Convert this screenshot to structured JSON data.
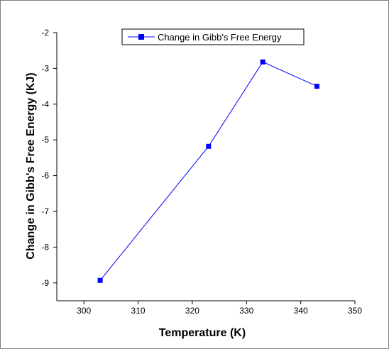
{
  "chart_data": {
    "type": "line",
    "title": "",
    "xlabel": "Temperature (K)",
    "ylabel": "Change in Gibb's Free Energy (KJ)",
    "xlim": [
      295,
      350
    ],
    "ylim": [
      -9.5,
      -2
    ],
    "xticks": [
      300,
      310,
      320,
      330,
      340,
      350
    ],
    "yticks": [
      -2,
      -3,
      -4,
      -5,
      -6,
      -7,
      -8,
      -9
    ],
    "grid": false,
    "legend_position": "top-center",
    "series": [
      {
        "name": "Change in Gibb's Free Energy",
        "color": "#0000ff",
        "marker": "square",
        "x": [
          303,
          323,
          333,
          343
        ],
        "y": [
          -8.93,
          -5.18,
          -2.82,
          -3.5
        ]
      }
    ]
  }
}
